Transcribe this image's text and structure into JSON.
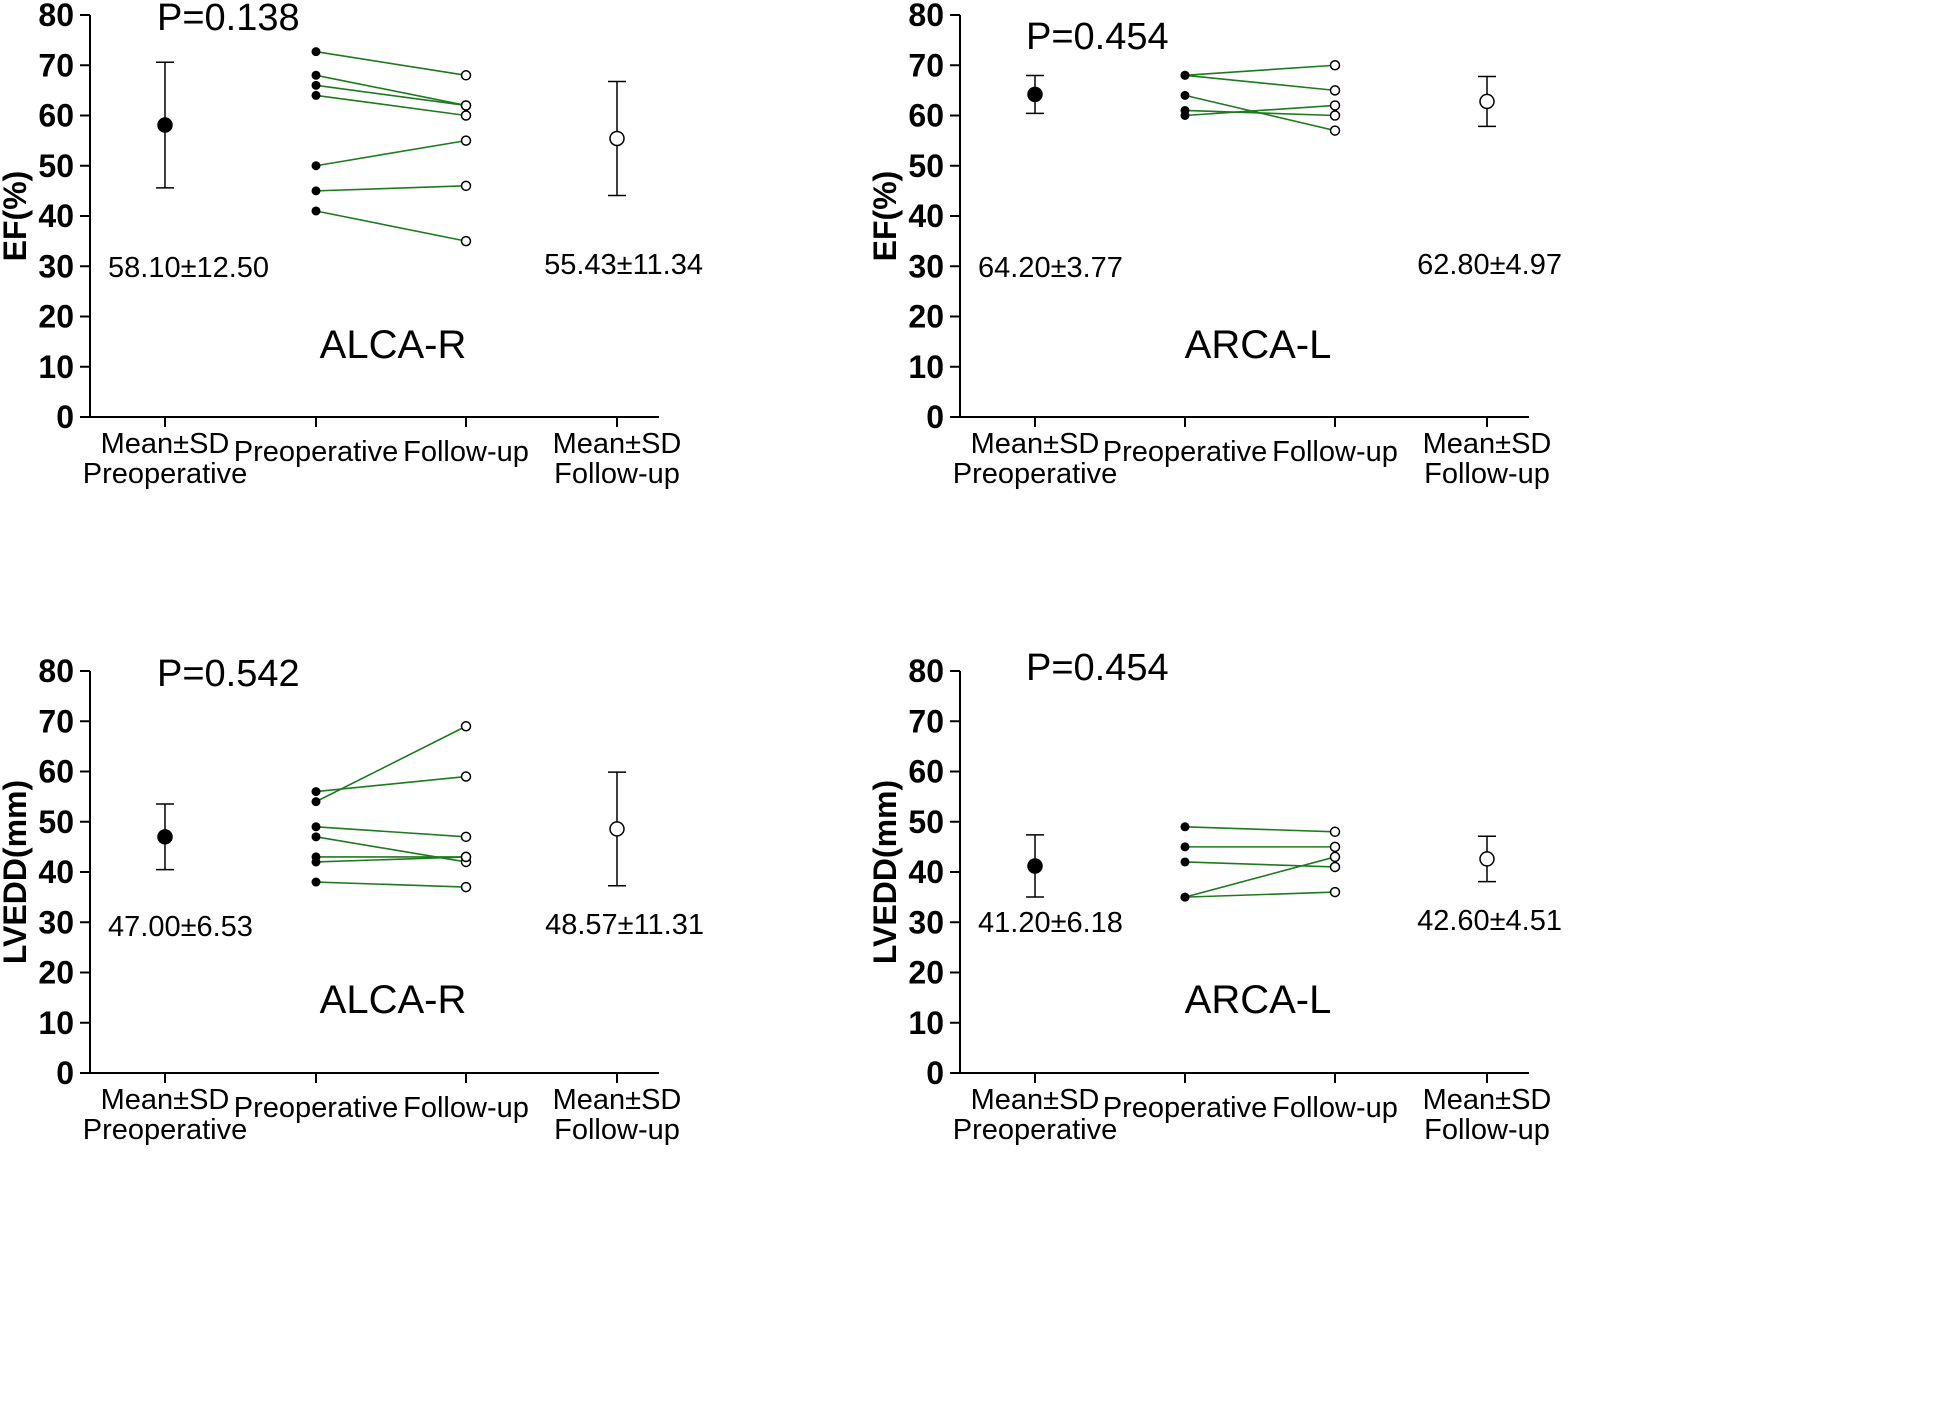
{
  "chart_data": [
    {
      "type": "scatter",
      "title": "ALCA-R",
      "p_value": "P=0.138",
      "ylabel": "EF(%)",
      "ylim": [
        0,
        80
      ],
      "yticks": [
        "0",
        "10",
        "20",
        "30",
        "40",
        "50",
        "60",
        "70",
        "80"
      ],
      "categories": [
        [
          "Mean±SD",
          "Preoperative"
        ],
        [
          "Preoperative"
        ],
        [
          "Follow-up"
        ],
        [
          "Mean±SD",
          "Follow-up"
        ]
      ],
      "pre": {
        "mean": 58.1,
        "sd": 12.5,
        "label": "58.10±12.50"
      },
      "post": {
        "mean": 55.43,
        "sd": 11.34,
        "label": "55.43±11.34"
      },
      "pairs": [
        [
          72.7,
          68
        ],
        [
          68,
          62
        ],
        [
          66,
          62
        ],
        [
          64,
          60
        ],
        [
          50,
          55
        ],
        [
          45,
          46
        ],
        [
          41,
          35
        ]
      ],
      "line_color": "#1e7a1e"
    },
    {
      "type": "scatter",
      "title": "ARCA-L",
      "p_value": "P=0.454",
      "ylabel": "EF(%)",
      "ylim": [
        0,
        80
      ],
      "yticks": [
        "0",
        "10",
        "20",
        "30",
        "40",
        "50",
        "60",
        "70",
        "80"
      ],
      "categories": [
        [
          "Mean±SD",
          "Preoperative"
        ],
        [
          "Preoperative"
        ],
        [
          "Follow-up"
        ],
        [
          "Mean±SD",
          "Follow-up"
        ]
      ],
      "pre": {
        "mean": 64.2,
        "sd": 3.77,
        "label": "64.20±3.77"
      },
      "post": {
        "mean": 62.8,
        "sd": 4.97,
        "label": "62.80±4.97"
      },
      "pairs": [
        [
          68,
          70
        ],
        [
          68,
          65
        ],
        [
          64,
          57
        ],
        [
          61,
          60
        ],
        [
          60,
          62
        ]
      ],
      "line_color": "#1e7a1e"
    },
    {
      "type": "scatter",
      "title": "ALCA-R",
      "p_value": "P=0.542",
      "ylabel": "LVEDD(mm)",
      "ylim": [
        0,
        80
      ],
      "yticks": [
        "0",
        "10",
        "20",
        "30",
        "40",
        "50",
        "60",
        "70",
        "80"
      ],
      "categories": [
        [
          "Mean±SD",
          "Preoperative"
        ],
        [
          "Preoperative"
        ],
        [
          "Follow-up"
        ],
        [
          "Mean±SD",
          "Follow-up"
        ]
      ],
      "pre": {
        "mean": 47.0,
        "sd": 6.53,
        "label": "47.00±6.53"
      },
      "post": {
        "mean": 48.57,
        "sd": 11.31,
        "label": "48.57±11.31"
      },
      "pairs": [
        [
          56,
          59
        ],
        [
          54,
          69
        ],
        [
          49,
          47
        ],
        [
          47,
          42
        ],
        [
          43,
          43
        ],
        [
          42,
          43
        ],
        [
          38,
          37
        ]
      ],
      "line_color": "#1e7a1e"
    },
    {
      "type": "scatter",
      "title": "ARCA-L",
      "p_value": "P=0.454",
      "ylabel": "LVEDD(mm)",
      "ylim": [
        0,
        80
      ],
      "yticks": [
        "0",
        "10",
        "20",
        "30",
        "40",
        "50",
        "60",
        "70",
        "80"
      ],
      "categories": [
        [
          "Mean±SD",
          "Preoperative"
        ],
        [
          "Preoperative"
        ],
        [
          "Follow-up"
        ],
        [
          "Mean±SD",
          "Follow-up"
        ]
      ],
      "pre": {
        "mean": 41.2,
        "sd": 6.18,
        "label": "41.20±6.18"
      },
      "post": {
        "mean": 42.6,
        "sd": 4.51,
        "label": "42.60±4.51"
      },
      "pairs": [
        [
          49,
          48
        ],
        [
          45,
          45
        ],
        [
          42,
          41
        ],
        [
          35,
          43
        ],
        [
          35,
          36
        ]
      ],
      "line_color": "#1e7a1e"
    }
  ]
}
